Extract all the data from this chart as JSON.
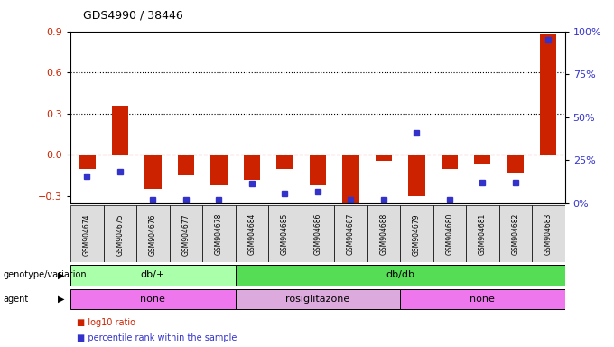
{
  "title": "GDS4990 / 38446",
  "samples": [
    "GSM904674",
    "GSM904675",
    "GSM904676",
    "GSM904677",
    "GSM904678",
    "GSM904684",
    "GSM904685",
    "GSM904686",
    "GSM904687",
    "GSM904688",
    "GSM904679",
    "GSM904680",
    "GSM904681",
    "GSM904682",
    "GSM904683"
  ],
  "log10_ratio": [
    -0.1,
    0.36,
    -0.25,
    -0.15,
    -0.22,
    -0.18,
    -0.1,
    -0.22,
    -0.35,
    -0.04,
    -0.3,
    -0.1,
    -0.07,
    -0.13,
    0.88
  ],
  "percentile": [
    15.5,
    18.0,
    2.0,
    2.0,
    2.0,
    11.5,
    5.5,
    6.5,
    2.0,
    2.0,
    41.0,
    2.0,
    12.0,
    12.0,
    95.0
  ],
  "ylim_left": [
    -0.35,
    0.9
  ],
  "ylim_right": [
    0,
    100
  ],
  "yticks_left": [
    -0.3,
    0.0,
    0.3,
    0.6,
    0.9
  ],
  "yticks_right": [
    0,
    25,
    50,
    75,
    100
  ],
  "hlines": [
    0.3,
    0.6
  ],
  "bar_color": "#cc2200",
  "dot_color": "#3333cc",
  "zero_line_color": "#cc2200",
  "background_color": "#ffffff",
  "genotype_groups": [
    {
      "label": "db/+",
      "start": 0,
      "end": 4,
      "color": "#aaffaa"
    },
    {
      "label": "db/db",
      "start": 5,
      "end": 14,
      "color": "#55dd55"
    }
  ],
  "agent_groups": [
    {
      "label": "none",
      "start": 0,
      "end": 4,
      "color": "#ee77ee"
    },
    {
      "label": "rosiglitazone",
      "start": 5,
      "end": 9,
      "color": "#ddaadd"
    },
    {
      "label": "none",
      "start": 10,
      "end": 14,
      "color": "#ee77ee"
    }
  ],
  "genotype_label": "genotype/variation",
  "agent_label": "agent",
  "legend_items": [
    {
      "color": "#cc2200",
      "label": "log10 ratio"
    },
    {
      "color": "#3333cc",
      "label": "percentile rank within the sample"
    }
  ]
}
